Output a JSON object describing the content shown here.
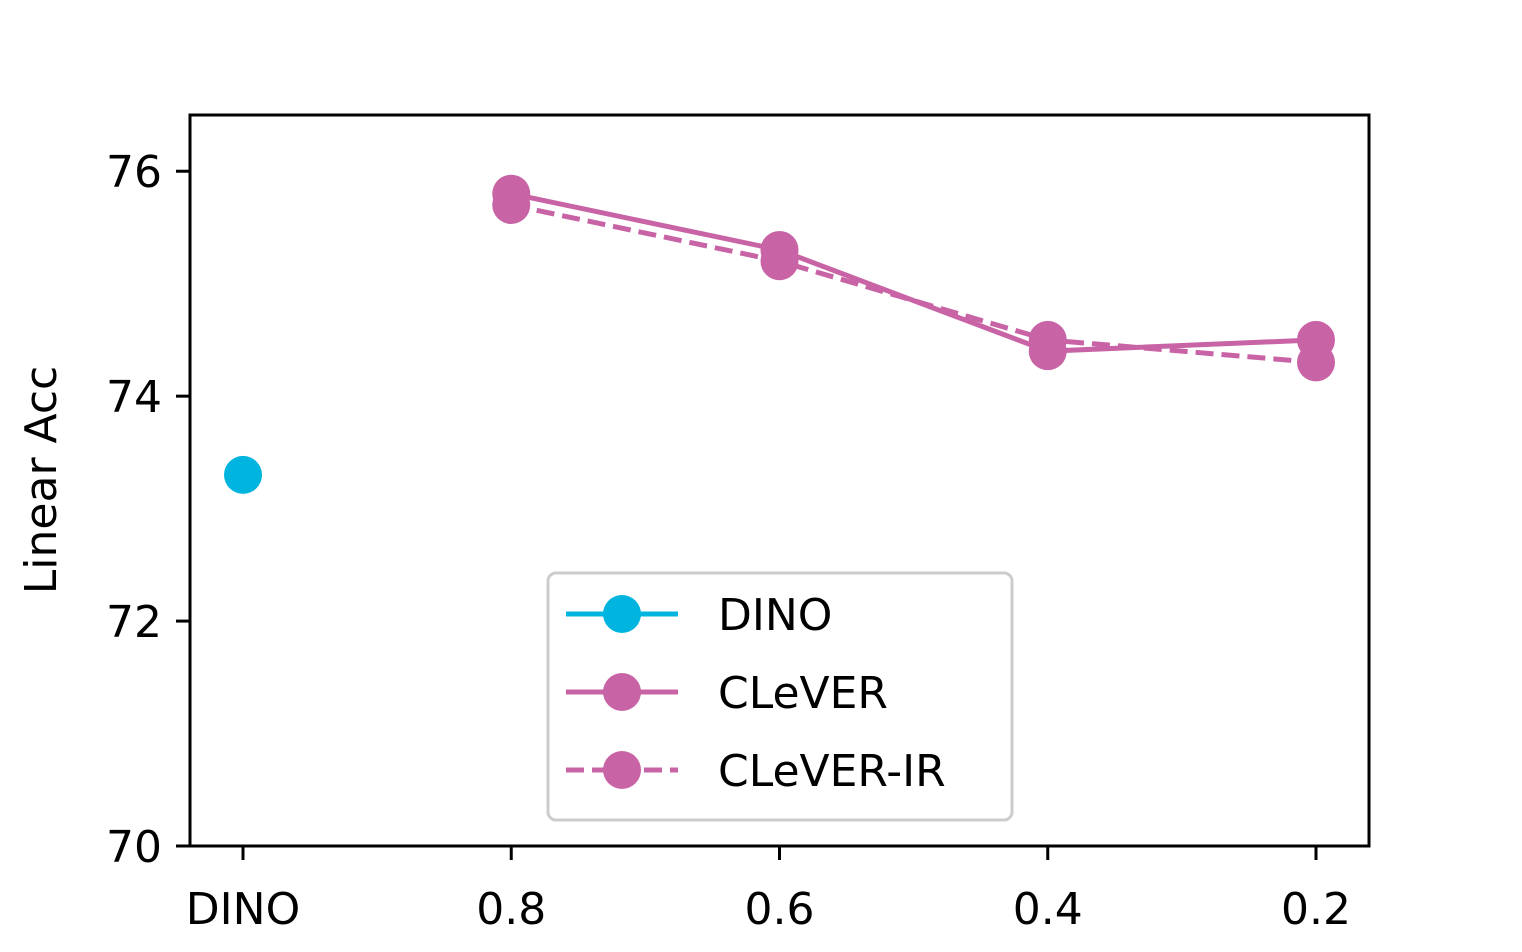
{
  "chart_data": {
    "type": "line",
    "categories": [
      "DINO",
      "0.8",
      "0.6",
      "0.4",
      "0.2"
    ],
    "xlabel": "",
    "ylabel": "Linear Acc",
    "ylim": [
      70,
      76.5
    ],
    "yticks": [
      70,
      72,
      74,
      76
    ],
    "grid": false,
    "legend_position": "bottom-center",
    "series": [
      {
        "name": "DINO",
        "color": "#00b4e0",
        "linestyle": "solid",
        "values": [
          73.3,
          null,
          null,
          null,
          null
        ]
      },
      {
        "name": "CLeVER",
        "color": "#c864a5",
        "linestyle": "solid",
        "values": [
          null,
          75.8,
          75.3,
          74.4,
          74.5
        ]
      },
      {
        "name": "CLeVER-IR",
        "color": "#c864a5",
        "linestyle": "dashed",
        "values": [
          null,
          75.7,
          75.2,
          74.5,
          74.3
        ]
      }
    ]
  }
}
